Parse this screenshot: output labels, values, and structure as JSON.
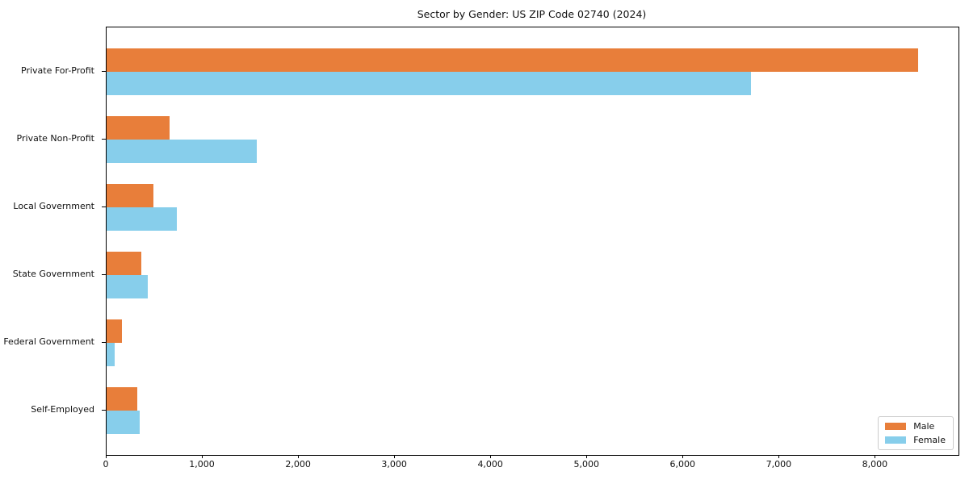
{
  "title": "Sector by Gender: US ZIP Code 02740 (2024)",
  "chart_data": {
    "type": "bar",
    "orientation": "horizontal",
    "title": "Sector by Gender: US ZIP Code 02740 (2024)",
    "categories": [
      "Private For-Profit",
      "Private Non-Profit",
      "Local Government",
      "State Government",
      "Federal Government",
      "Self-Employed"
    ],
    "series": [
      {
        "name": "Male",
        "color": "#e87e3a",
        "values": [
          8440,
          655,
          490,
          360,
          160,
          320
        ]
      },
      {
        "name": "Female",
        "color": "#87ceeb",
        "values": [
          6700,
          1565,
          730,
          430,
          80,
          345
        ]
      }
    ],
    "xlabel": "",
    "ylabel": "",
    "xlim": [
      0,
      8862
    ],
    "xticks": [
      0,
      1000,
      2000,
      3000,
      4000,
      5000,
      6000,
      7000,
      8000
    ],
    "xtick_labels": [
      "0",
      "1,000",
      "2,000",
      "3,000",
      "4,000",
      "5,000",
      "6,000",
      "7,000",
      "8,000"
    ],
    "grid": false,
    "legend": {
      "position": "lower right",
      "entries": [
        "Male",
        "Female"
      ]
    },
    "colors": {
      "male": "#e87e3a",
      "female": "#87ceeb",
      "spine": "#000000",
      "background": "#ffffff",
      "legend_border": "#cccccc"
    }
  }
}
